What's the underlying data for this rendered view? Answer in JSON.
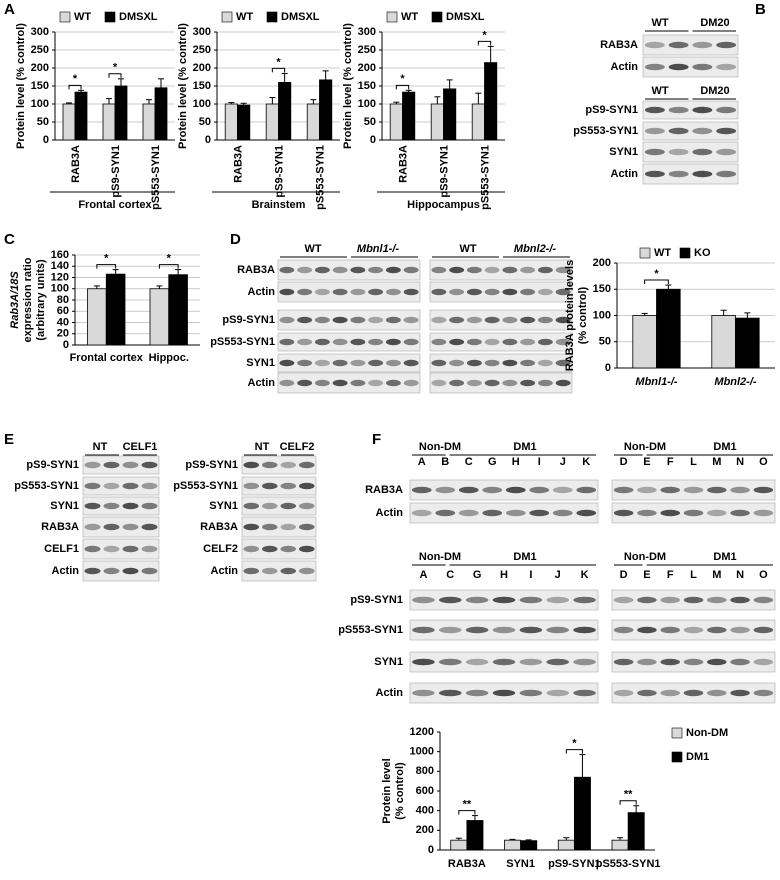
{
  "panels": [
    "A",
    "B",
    "C",
    "D",
    "E",
    "F"
  ],
  "chart_data": [
    {
      "type": "bar",
      "ylabel": [
        "Protein level (% control)"
      ],
      "xlabel": "Frontal cortex",
      "categories": [
        "RAB3A",
        "pS9-SYN1",
        "pS553-SYN1"
      ],
      "series": [
        {
          "name": "WT",
          "color": "#d9d9d9",
          "values": [
            100,
            100,
            100
          ],
          "errors": [
            3,
            15,
            12
          ]
        },
        {
          "name": "DMSXL",
          "color": "#000000",
          "values": [
            133,
            150,
            145
          ],
          "errors": [
            5,
            20,
            25
          ]
        }
      ],
      "significance": [
        "*",
        "*",
        null
      ],
      "ylim": [
        0,
        300
      ],
      "yticks": [
        0,
        50,
        100,
        150,
        200,
        250,
        300
      ],
      "grid": true,
      "legend": "top"
    },
    {
      "type": "bar",
      "ylabel": [
        "Protein level (% control)"
      ],
      "xlabel": "Brainstem",
      "categories": [
        "RAB3A",
        "pS9-SYN1",
        "pS553-SYN1"
      ],
      "series": [
        {
          "name": "WT",
          "color": "#d9d9d9",
          "values": [
            100,
            100,
            100
          ],
          "errors": [
            4,
            18,
            12
          ]
        },
        {
          "name": "DMSXL",
          "color": "#000000",
          "values": [
            97,
            160,
            167
          ],
          "errors": [
            5,
            25,
            25
          ]
        }
      ],
      "significance": [
        null,
        "*",
        null
      ],
      "ylim": [
        0,
        300
      ],
      "yticks": [
        0,
        50,
        100,
        150,
        200,
        250,
        300
      ],
      "grid": true,
      "legend": "top"
    },
    {
      "type": "bar",
      "ylabel": [
        "Protein level (% control)"
      ],
      "xlabel": "Hippocampus",
      "categories": [
        "RAB3A",
        "pS9-SYN1",
        "pS553-SYN1"
      ],
      "series": [
        {
          "name": "WT",
          "color": "#d9d9d9",
          "values": [
            100,
            100,
            100
          ],
          "errors": [
            5,
            20,
            30
          ]
        },
        {
          "name": "DMSXL",
          "color": "#000000",
          "values": [
            133,
            142,
            215
          ],
          "errors": [
            5,
            25,
            45
          ]
        }
      ],
      "significance": [
        "*",
        null,
        "*"
      ],
      "ylim": [
        0,
        300
      ],
      "yticks": [
        0,
        50,
        100,
        150,
        200,
        250,
        300
      ],
      "grid": true,
      "legend": "top"
    },
    {
      "type": "bar",
      "ylabel": [
        "Rab3A/18S",
        "expression ratio",
        "(arbitrary units)"
      ],
      "categories": [
        "Frontal cortex",
        "Hippoc."
      ],
      "series": [
        {
          "color": "#d9d9d9",
          "values": [
            100,
            100
          ],
          "errors": [
            5,
            5
          ]
        },
        {
          "color": "#000000",
          "values": [
            126,
            125
          ],
          "errors": [
            8,
            9
          ]
        }
      ],
      "significance": [
        "*",
        "*"
      ],
      "ylim": [
        0,
        160
      ],
      "yticks": [
        0,
        20,
        40,
        60,
        80,
        100,
        120,
        140,
        160
      ],
      "grid": true
    },
    {
      "type": "bar",
      "ylabel": [
        "RAB3A protein levels",
        "(% control)"
      ],
      "categories": [
        "Mbnl1-/-",
        "Mbnl2-/-"
      ],
      "series": [
        {
          "name": "WT",
          "color": "#d9d9d9",
          "values": [
            100,
            100
          ],
          "errors": [
            4,
            10
          ]
        },
        {
          "name": "KO",
          "color": "#000000",
          "values": [
            150,
            95
          ],
          "errors": [
            8,
            10
          ]
        }
      ],
      "significance": [
        "*",
        null
      ],
      "ylim": [
        0,
        200
      ],
      "yticks": [
        0,
        50,
        100,
        150,
        200
      ],
      "grid": true,
      "legend": "top"
    },
    {
      "type": "bar",
      "ylabel": [
        "Protein level",
        "(% control)"
      ],
      "categories": [
        "RAB3A",
        "SYN1",
        "pS9-SYN1",
        "pS553-SYN1"
      ],
      "series": [
        {
          "name": "Non-DM",
          "color": "#d9d9d9",
          "values": [
            100,
            100,
            100,
            100
          ],
          "errors": [
            20,
            8,
            25,
            25
          ]
        },
        {
          "name": "DM1",
          "color": "#000000",
          "values": [
            300,
            95,
            740,
            380
          ],
          "errors": [
            50,
            8,
            230,
            70
          ]
        }
      ],
      "significance": [
        "**",
        null,
        "*",
        "**"
      ],
      "ylim": [
        0,
        1200
      ],
      "yticks": [
        0,
        200,
        400,
        600,
        800,
        1000,
        1200
      ],
      "grid": false,
      "legend": "right"
    }
  ],
  "blots": [
    {
      "headers": [
        "WT",
        "DM20"
      ],
      "rows": [
        "RAB3A",
        "Actin"
      ]
    },
    {
      "headers": [
        "WT",
        "DM20"
      ],
      "rows": [
        "pS9-SYN1",
        "pS553-SYN1",
        "SYN1",
        "Actin"
      ]
    },
    {
      "headers": [
        "WT",
        "Mbnl1-/-"
      ],
      "rows": [
        "RAB3A",
        "Actin",
        "pS9-SYN1",
        "pS553-SYN1",
        "SYN1",
        "Actin"
      ]
    },
    {
      "headers": [
        "WT",
        "Mbnl2-/-"
      ]
    },
    {
      "headers": [
        "NT",
        "CELF1"
      ],
      "rows": [
        "pS9-SYN1",
        "pS553-SYN1",
        "SYN1",
        "RAB3A",
        "CELF1",
        "Actin"
      ]
    },
    {
      "headers": [
        "NT",
        "CELF2"
      ],
      "rows": [
        "pS9-SYN1",
        "pS553-SYN1",
        "SYN1",
        "RAB3A",
        "CELF2",
        "Actin"
      ]
    },
    {
      "headers": [
        "Non-DM",
        "DM1"
      ],
      "lanes": [
        "A",
        "B",
        "C",
        "G",
        "H",
        "I",
        "J",
        "K"
      ],
      "rows": [
        "RAB3A",
        "Actin"
      ]
    },
    {
      "headers": [
        "Non-DM",
        "DM1"
      ],
      "lanes": [
        "D",
        "E",
        "F",
        "L",
        "M",
        "N",
        "O"
      ]
    },
    {
      "headers": [
        "Non-DM",
        "DM1"
      ],
      "lanes": [
        "A",
        "C",
        "G",
        "H",
        "I",
        "J",
        "K"
      ],
      "rows": [
        "pS9-SYN1",
        "pS553-SYN1",
        "SYN1",
        "Actin"
      ]
    },
    {
      "headers": [
        "Non-DM",
        "DM1"
      ],
      "lanes": [
        "D",
        "E",
        "F",
        "L",
        "M",
        "N",
        "O"
      ]
    }
  ]
}
